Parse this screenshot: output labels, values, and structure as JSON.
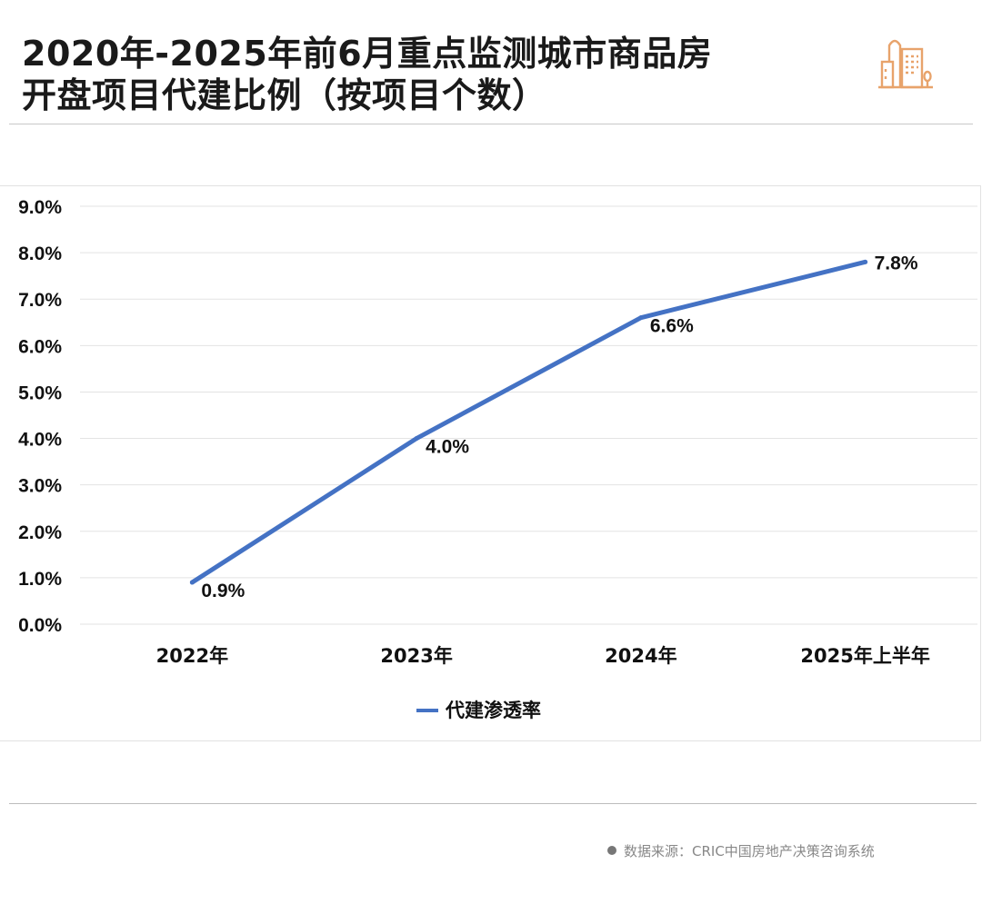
{
  "header": {
    "title_line1": "2020年-2025年前6月重点监测城市商品房",
    "title_line2": "开盘项目代建比例（按项目个数）",
    "logo_icon": "city-buildings-icon",
    "logo_color": "#e8a36b"
  },
  "footer": {
    "source": "数据来源：CRIC中国房地产决策咨询系统"
  },
  "chart_data": {
    "type": "line",
    "title": "2020年-2025年前6月重点监测城市商品房开盘项目代建比例（按项目个数）",
    "categories": [
      "2022年",
      "2023年",
      "2024年",
      "2025年上半年"
    ],
    "series": [
      {
        "name": "代建渗透率",
        "values": [
          0.9,
          4.0,
          6.6,
          7.8
        ],
        "labels": [
          "0.9%",
          "4.0%",
          "6.6%",
          "7.8%"
        ],
        "color": "#4472c4"
      }
    ],
    "ylim": [
      0,
      9
    ],
    "yticks": [
      "0.0%",
      "1.0%",
      "2.0%",
      "3.0%",
      "4.0%",
      "5.0%",
      "6.0%",
      "7.0%",
      "8.0%",
      "9.0%"
    ],
    "xlabel": "",
    "ylabel": "",
    "grid": true,
    "legend": "bottom"
  }
}
